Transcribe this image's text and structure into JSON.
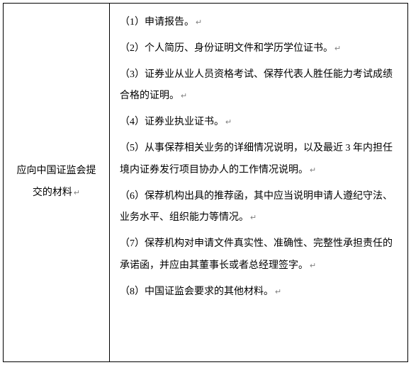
{
  "table": {
    "leftCell": {
      "line1": "应向中国证监会提",
      "line2": "交的材料"
    },
    "rightCell": {
      "items": [
        "（1）申请报告。",
        "（2）个人简历、身份证明文件和学历学位证书。",
        "（3）证券业从业人员资格考试、保荐代表人胜任能力考试成绩合格的证明。",
        "（4）证券业执业证书。",
        "（5）从事保荐相关业务的详细情况说明，以及最近 3 年内担任境内证券发行项目协办人的工作情况说明。",
        "（6）保荐机构出具的推荐函，其中应当说明申请人遵纪守法、业务水平、组织能力等情况。",
        "（7）保荐机构对申请文件真实性、准确性、完整性承担责任的承诺函，并应由其董事长或者总经理签字。",
        "（8）中国证监会要求的其他材料。"
      ]
    }
  },
  "returnMark": "↵"
}
